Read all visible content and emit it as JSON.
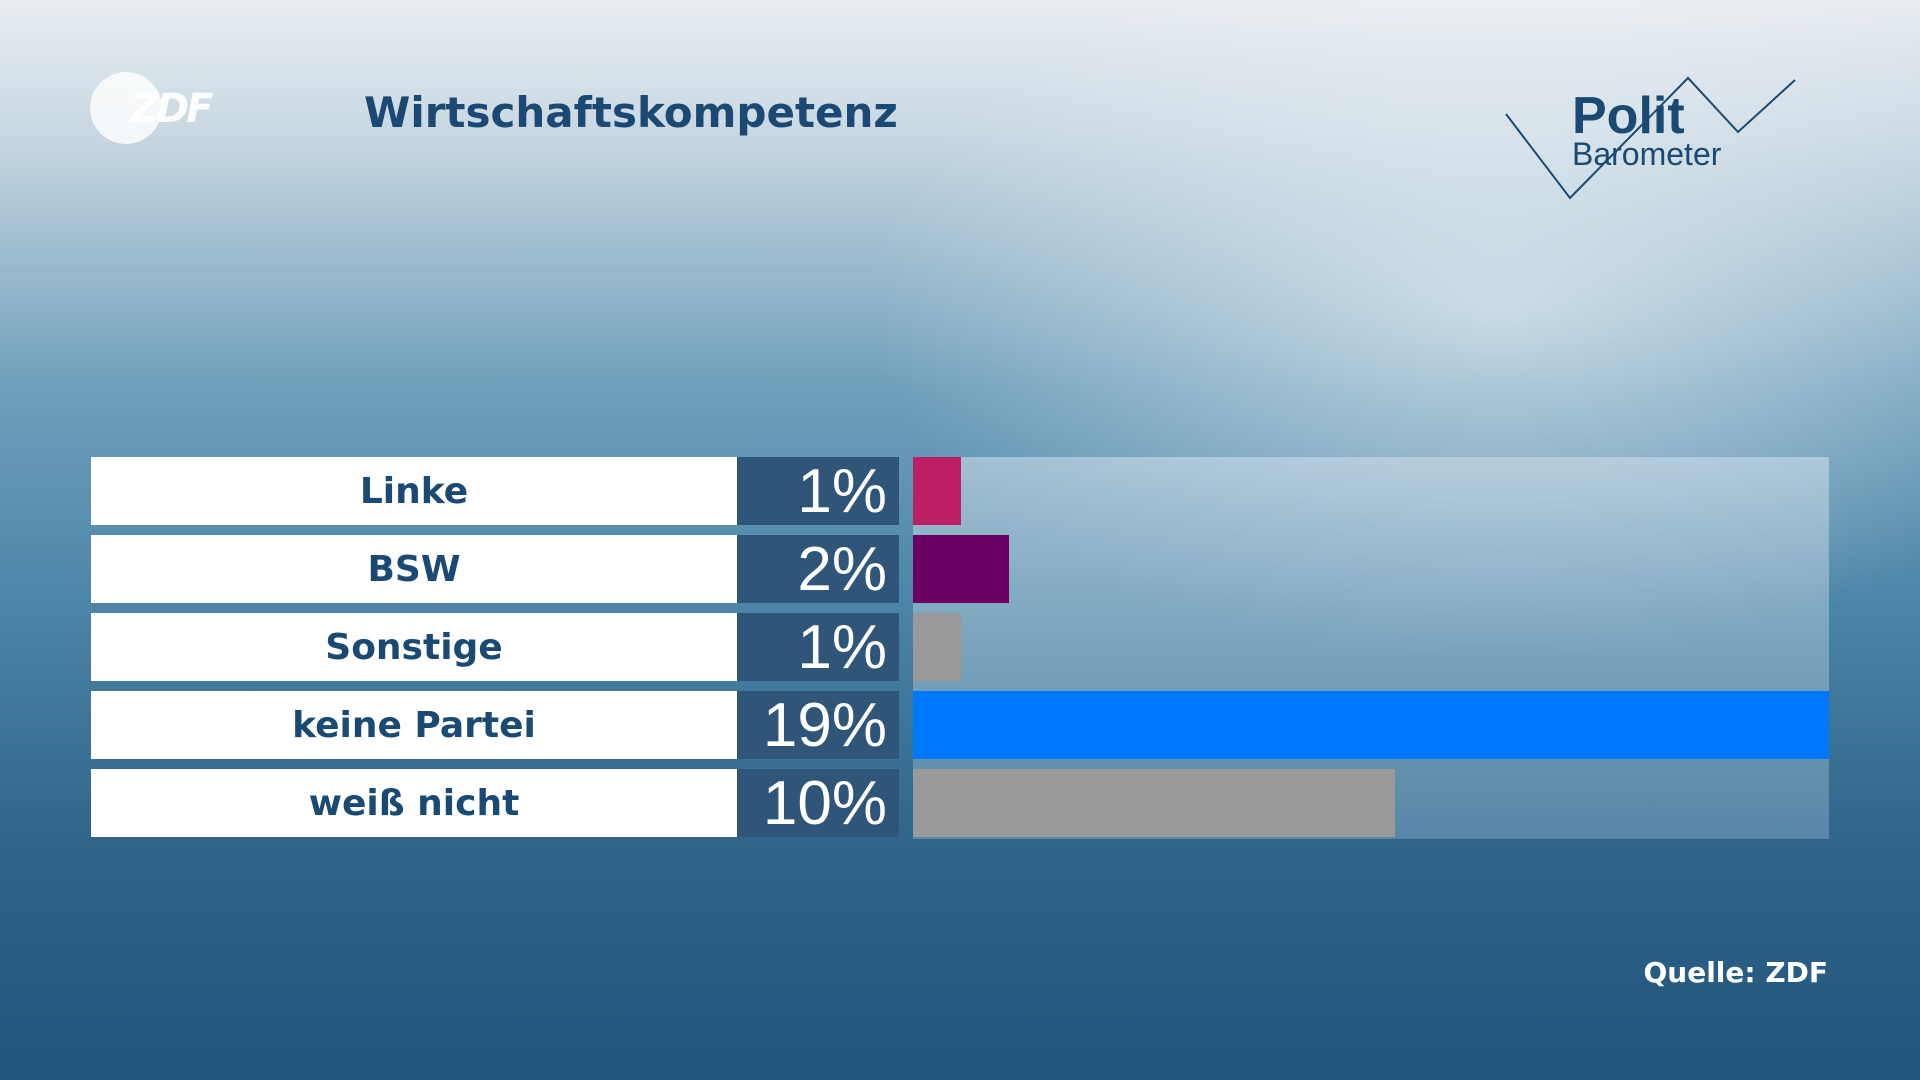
{
  "logo": {
    "zdf_text": "ZDF",
    "polit": "Polit",
    "barometer": "Barometer"
  },
  "title": "Wirtschaftskompetenz",
  "source": "Quelle: ZDF",
  "colors": {
    "Linke": "#be1e63",
    "BSW": "#6a0062",
    "Sonstige": "#999999",
    "keine Partei": "#0078ff",
    "weiß nicht": "#999999"
  },
  "chart_data": {
    "type": "bar",
    "orientation": "horizontal",
    "categories": [
      "Linke",
      "BSW",
      "Sonstige",
      "keine Partei",
      "weiß nicht"
    ],
    "values": [
      1,
      2,
      1,
      19,
      10
    ],
    "value_labels": [
      "1%",
      "2%",
      "1%",
      "19%",
      "10%"
    ],
    "unit": "%",
    "xlim": [
      0,
      19
    ],
    "title": "Wirtschaftskompetenz"
  }
}
